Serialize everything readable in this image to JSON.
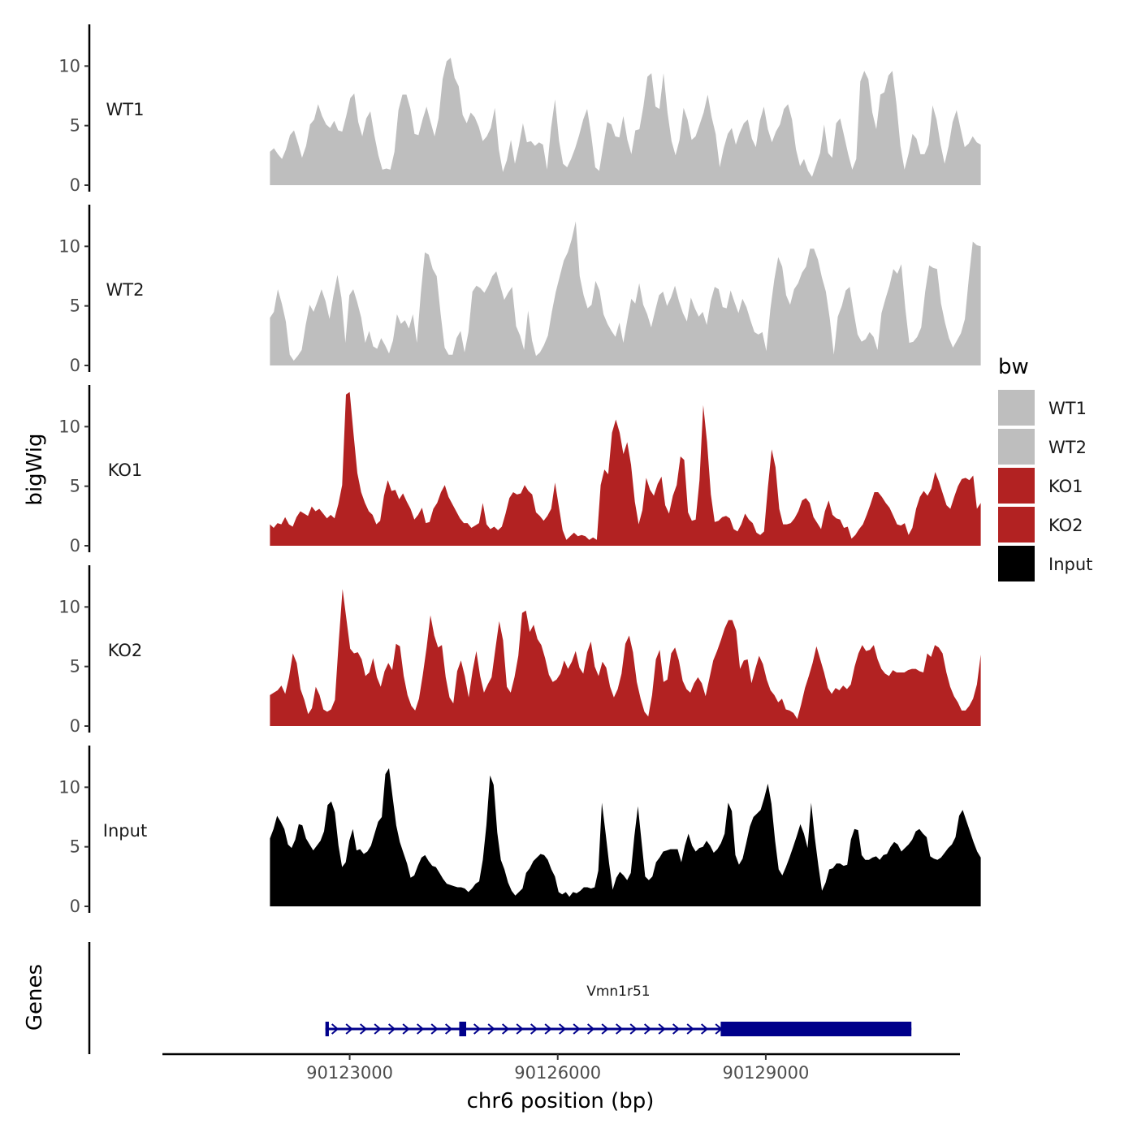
{
  "chart_data": {
    "type": "area",
    "title": "",
    "ylabel": "bigWig",
    "xlabel": "chr6 position (bp)",
    "ylim": [
      0,
      13.5
    ],
    "yticks": [
      "0",
      "5",
      "10"
    ],
    "xlim": [
      90120300,
      90131800
    ],
    "xticks": [
      {
        "value": 90123000,
        "label": "90123000"
      },
      {
        "value": 90126000,
        "label": "90126000"
      },
      {
        "value": 90129000,
        "label": "90129000"
      }
    ],
    "data_x_range": [
      90121850,
      90132100
    ],
    "series": [
      {
        "name": "WT1",
        "color": "#bebebe",
        "values": [
          2.8,
          3.1,
          2.6,
          2.2,
          3,
          4.2,
          4.6,
          3.5,
          2.3,
          3.3,
          5.1,
          5.5,
          6.8,
          5.8,
          5.1,
          4.8,
          5.4,
          4.6,
          4.5,
          5.8,
          7.3,
          7.7,
          5.3,
          4.1,
          5.6,
          6.2,
          4.2,
          2.5,
          1.3,
          1.4,
          1.3,
          2.8,
          6.3,
          7.6,
          7.6,
          6.4,
          4.3,
          4.2,
          5.5,
          6.6,
          5.3,
          4.1,
          5.6,
          8.9,
          10.4,
          10.7,
          9,
          8.3,
          5.9,
          5.2,
          6.1,
          5.7,
          4.9,
          3.7,
          4.1,
          4.8,
          6.5,
          3,
          1.1,
          2.1,
          3.8,
          1.8,
          3.3,
          5.2,
          3.6,
          3.7,
          3.3,
          3.6,
          3.4,
          1.3,
          4.8,
          7.2,
          3.7,
          1.8,
          1.5,
          2.2,
          3.1,
          4.2,
          5.5,
          6.4,
          4.2,
          1.5,
          1.2,
          3.3,
          5.3,
          5.1,
          4.1,
          4,
          5.8,
          3.8,
          2.6,
          4.6,
          4.7,
          6.6,
          9.1,
          9.4,
          6.6,
          6.4,
          9.4,
          6.1,
          3.7,
          2.5,
          3.8,
          6.5,
          5.5,
          3.8,
          4.1,
          5.1,
          6.1,
          7.6,
          5.7,
          4.3,
          1.5,
          3.1,
          4.3,
          4.8,
          3.4,
          4.4,
          5.2,
          5.5,
          3.9,
          3.2,
          5.4,
          6.6,
          4.7,
          3.6,
          4.5,
          5.1,
          6.4,
          6.8,
          5.5,
          3,
          1.6,
          2.2,
          1.2,
          0.7,
          1.7,
          2.7,
          5.1,
          2.7,
          2.3,
          5.2,
          5.6,
          4.1,
          2.6,
          1.3,
          2.2,
          8.7,
          9.6,
          8.9,
          6.1,
          4.7,
          7.6,
          7.8,
          9.2,
          9.6,
          6.8,
          3.3,
          1.3,
          2.6,
          4.3,
          3.9,
          2.6,
          2.6,
          3.4,
          6.7,
          5.5,
          3.4,
          1.8,
          3.3,
          5.3,
          6.3,
          4.7,
          3.2,
          3.5,
          4.1,
          3.6,
          3.4
        ]
      },
      {
        "name": "WT2",
        "color": "#bebebe",
        "values": [
          4,
          4.5,
          6.4,
          5.2,
          3.7,
          0.9,
          0.4,
          0.8,
          1.3,
          3.4,
          5.1,
          4.5,
          5.4,
          6.4,
          5.4,
          3.9,
          5.9,
          7.6,
          5.7,
          1.9,
          5.9,
          6.4,
          5.3,
          4,
          1.9,
          2.9,
          1.6,
          1.4,
          2.3,
          1.7,
          1,
          2.1,
          4.3,
          3.5,
          3.8,
          3.1,
          4.3,
          1.9,
          6.1,
          9.5,
          9.3,
          8.1,
          7.5,
          4.3,
          1.5,
          0.9,
          0.9,
          2.3,
          2.9,
          1.1,
          2.8,
          6.2,
          6.7,
          6.5,
          6.1,
          6.7,
          7.5,
          7.9,
          6.7,
          5.5,
          6.1,
          6.6,
          3.3,
          2.5,
          1.3,
          4.6,
          2.1,
          0.8,
          1.1,
          1.7,
          2.5,
          4.5,
          6.2,
          7.5,
          8.8,
          9.5,
          10.6,
          12.1,
          7.5,
          5.9,
          4.8,
          5.1,
          7.1,
          6.3,
          4.3,
          3.5,
          2.9,
          2.4,
          3.6,
          1.9,
          3.8,
          5.6,
          5.2,
          6.9,
          5.1,
          4.3,
          3.2,
          4.6,
          5.9,
          6.2,
          5,
          5.7,
          6.7,
          5.4,
          4.4,
          3.7,
          5.7,
          4.8,
          4.1,
          4.5,
          3.4,
          5.4,
          6.6,
          6.4,
          4.9,
          4.8,
          6.3,
          5.3,
          4.4,
          5.6,
          4.9,
          3.8,
          2.8,
          2.6,
          2.8,
          1.2,
          4.7,
          7.2,
          9.1,
          8.3,
          5.9,
          5.1,
          6.4,
          6.9,
          7.8,
          8.3,
          9.8,
          9.8,
          8.9,
          7.4,
          6.2,
          3.9,
          0.9,
          4.1,
          5,
          6.3,
          6.6,
          4.5,
          2.6,
          2,
          2.2,
          2.8,
          2.4,
          1.3,
          4.4,
          5.6,
          6.7,
          8.1,
          7.7,
          8.5,
          4.8,
          1.9,
          2,
          2.4,
          3.2,
          6.2,
          8.4,
          8.2,
          8.1,
          5.2,
          3.6,
          2.3,
          1.5,
          2.1,
          2.7,
          3.9,
          7.3,
          10.4,
          10.1,
          10
        ]
      },
      {
        "name": "KO1",
        "color": "#b22222",
        "values": [
          1.8,
          1.5,
          1.9,
          1.8,
          2.4,
          1.8,
          1.6,
          2.4,
          2.9,
          2.7,
          2.5,
          3.3,
          2.9,
          3.1,
          2.7,
          2.3,
          2.6,
          2.3,
          3.5,
          5.1,
          12.7,
          12.9,
          9.4,
          6.1,
          4.5,
          3.6,
          2.9,
          2.6,
          1.8,
          2.1,
          4.2,
          5.5,
          4.6,
          4.7,
          3.9,
          4.4,
          3.7,
          3.1,
          2.2,
          2.6,
          3.2,
          1.9,
          2,
          3.1,
          3.6,
          4.5,
          5.1,
          4.1,
          3.5,
          2.9,
          2.3,
          1.9,
          1.9,
          1.5,
          1.7,
          1.9,
          3.6,
          1.8,
          1.4,
          1.6,
          1.3,
          1.6,
          2.7,
          4,
          4.5,
          4.3,
          4.4,
          5.1,
          4.6,
          4.3,
          2.8,
          2.5,
          2.1,
          2.5,
          3.1,
          5.3,
          3.3,
          1.3,
          0.5,
          0.8,
          1.1,
          0.8,
          0.9,
          0.8,
          0.5,
          0.7,
          0.5,
          5.1,
          6.4,
          6,
          9.5,
          10.6,
          9.5,
          7.7,
          8.7,
          6.8,
          3.7,
          1.8,
          3,
          5.7,
          4.7,
          4.2,
          5.2,
          5.8,
          3.4,
          2.7,
          4.2,
          5.1,
          7.5,
          7.2,
          2.8,
          2.1,
          2.2,
          5.5,
          11.8,
          8.7,
          4.3,
          2,
          2.1,
          2.4,
          2.5,
          2.3,
          1.4,
          1.2,
          1.8,
          2.7,
          2.2,
          1.9,
          1.1,
          0.9,
          1.2,
          4.9,
          8.1,
          6.6,
          3.1,
          1.8,
          1.8,
          1.9,
          2.3,
          2.9,
          3.8,
          4,
          3.6,
          2.4,
          1.9,
          1.4,
          2.9,
          3.8,
          2.6,
          2.3,
          2.2,
          1.5,
          1.6,
          0.6,
          0.9,
          1.4,
          1.8,
          2.6,
          3.5,
          4.5,
          4.5,
          4.1,
          3.6,
          3.2,
          2.5,
          1.8,
          1.7,
          1.9,
          0.9,
          1.5,
          3.1,
          4.1,
          4.6,
          4.2,
          4.8,
          6.2,
          5.4,
          4.4,
          3.4,
          3.1,
          4.1,
          5,
          5.6,
          5.7,
          5.5,
          5.9,
          3.1,
          3.6
        ]
      },
      {
        "name": "KO2",
        "color": "#b22222",
        "values": [
          2.6,
          2.8,
          3,
          3.4,
          2.7,
          4.1,
          6.1,
          5.3,
          3.1,
          2.2,
          1,
          1.5,
          3.3,
          2.6,
          1.4,
          1.2,
          1.4,
          2.2,
          7.1,
          11.5,
          9,
          6.5,
          6.1,
          6.2,
          5.6,
          4.2,
          4.5,
          5.7,
          4.1,
          3.3,
          4.6,
          5.3,
          4.7,
          6.9,
          6.7,
          4.2,
          2.6,
          1.7,
          1.3,
          2.3,
          4.3,
          6.6,
          9.3,
          7.6,
          6.6,
          6.8,
          4.1,
          2.4,
          1.9,
          4.6,
          5.5,
          4.2,
          2.4,
          4.6,
          6.3,
          4.2,
          2.8,
          3.5,
          4.1,
          6.5,
          8.8,
          7.2,
          3.3,
          2.8,
          4.1,
          5.9,
          9.5,
          9.7,
          7.9,
          8.5,
          7.3,
          6.8,
          5.7,
          4.3,
          3.7,
          3.9,
          4.4,
          5.5,
          4.8,
          5.4,
          6.3,
          4.9,
          4.4,
          6.2,
          7.1,
          5,
          4.2,
          5.4,
          4.9,
          3.3,
          2.4,
          3.1,
          4.4,
          6.9,
          7.6,
          6.2,
          3.7,
          2.3,
          1.2,
          0.8,
          2.6,
          5.6,
          6.4,
          3.7,
          3.9,
          6.1,
          6.6,
          5.5,
          3.8,
          3.1,
          2.8,
          3.6,
          4.1,
          3.6,
          2.5,
          4,
          5.5,
          6.3,
          7.2,
          8.2,
          8.9,
          8.9,
          8,
          4.8,
          5.5,
          5.6,
          3.6,
          4.8,
          5.9,
          5.2,
          3.9,
          3,
          2.6,
          2,
          2.3,
          1.4,
          1.3,
          1.1,
          0.6,
          1.8,
          3.2,
          4.2,
          5.3,
          6.7,
          5.6,
          4.5,
          3.2,
          2.7,
          3.2,
          3,
          3.4,
          3.1,
          3.5,
          5,
          6.1,
          6.8,
          6.3,
          6.4,
          6.8,
          5.6,
          4.8,
          4.4,
          4.2,
          4.7,
          4.5,
          4.5,
          4.5,
          4.7,
          4.8,
          4.8,
          4.6,
          4.5,
          6.1,
          5.8,
          6.8,
          6.6,
          6.1,
          4.5,
          3.3,
          2.5,
          2,
          1.3,
          1.3,
          1.7,
          2.3,
          3.5,
          6
        ]
      },
      {
        "name": "Input",
        "color": "#000000",
        "values": [
          5.7,
          6.5,
          7.6,
          7.1,
          6.5,
          5.2,
          4.9,
          5.6,
          6.9,
          6.8,
          5.7,
          5.2,
          4.7,
          5.1,
          5.5,
          6.3,
          8.5,
          8.8,
          7.9,
          5.1,
          3.3,
          3.7,
          5.5,
          6.5,
          4.7,
          4.8,
          4.4,
          4.6,
          5.1,
          6.1,
          7.1,
          7.5,
          11.1,
          11.6,
          9.2,
          6.8,
          5.4,
          4.5,
          3.6,
          2.4,
          2.6,
          3.4,
          4.1,
          4.3,
          3.8,
          3.4,
          3.3,
          2.8,
          2.3,
          1.9,
          1.8,
          1.7,
          1.6,
          1.6,
          1.5,
          1.2,
          1.5,
          1.9,
          2.1,
          3.9,
          6.8,
          11,
          10.2,
          6.2,
          3.9,
          3.1,
          2,
          1.3,
          0.9,
          1.2,
          1.5,
          2.8,
          3.2,
          3.8,
          4.1,
          4.4,
          4.3,
          3.9,
          3.1,
          2.5,
          1.2,
          1,
          1.2,
          0.8,
          1.2,
          1.1,
          1.3,
          1.6,
          1.6,
          1.5,
          1.6,
          3,
          8.7,
          6.2,
          3.6,
          1.4,
          2.4,
          2.9,
          2.6,
          2.2,
          2.8,
          5.9,
          8.4,
          5.4,
          2.5,
          2.2,
          2.5,
          3.7,
          4.1,
          4.6,
          4.7,
          4.8,
          4.8,
          4.8,
          3.7,
          5.1,
          6.1,
          5.1,
          4.6,
          4.9,
          5,
          5.5,
          5.1,
          4.5,
          4.8,
          5.3,
          6.1,
          8.7,
          8,
          4.3,
          3.5,
          4,
          5.3,
          6.7,
          7.5,
          7.8,
          8.1,
          9.1,
          10.3,
          8.6,
          5.5,
          3.1,
          2.6,
          3.3,
          4.1,
          5,
          5.9,
          6.9,
          6.1,
          4.9,
          8.7,
          5.8,
          3.4,
          1.3,
          2,
          3.1,
          3.2,
          3.6,
          3.6,
          3.4,
          3.5,
          5.6,
          6.5,
          6.4,
          4.3,
          3.9,
          3.9,
          4.1,
          4.2,
          3.9,
          4.3,
          4.4,
          5,
          5.4,
          5.2,
          4.6,
          4.9,
          5.2,
          5.6,
          6.3,
          6.5,
          6.1,
          5.8,
          4.2,
          4,
          3.9,
          4.1,
          4.5,
          4.9,
          5.2,
          5.8,
          7.6,
          8.1,
          7.2,
          6.3,
          5.4,
          4.6,
          4.1
        ]
      }
    ],
    "legend": {
      "title": "bw",
      "position": "right",
      "entries": [
        {
          "label": "WT1",
          "color": "#bebebe"
        },
        {
          "label": "WT2",
          "color": "#bebebe"
        },
        {
          "label": "KO1",
          "color": "#b22222"
        },
        {
          "label": "KO2",
          "color": "#b22222"
        },
        {
          "label": "Input",
          "color": "#000000"
        }
      ]
    },
    "genes_panel": {
      "ylabel": "Genes",
      "color": "#00008b",
      "gene": {
        "name": "Vmn1r51",
        "strand": "+",
        "start": 90122650,
        "end": 90131100,
        "exons": [
          [
            90122650,
            90122700
          ],
          [
            90124580,
            90124680
          ],
          [
            90128350,
            90131100
          ]
        ]
      }
    }
  }
}
